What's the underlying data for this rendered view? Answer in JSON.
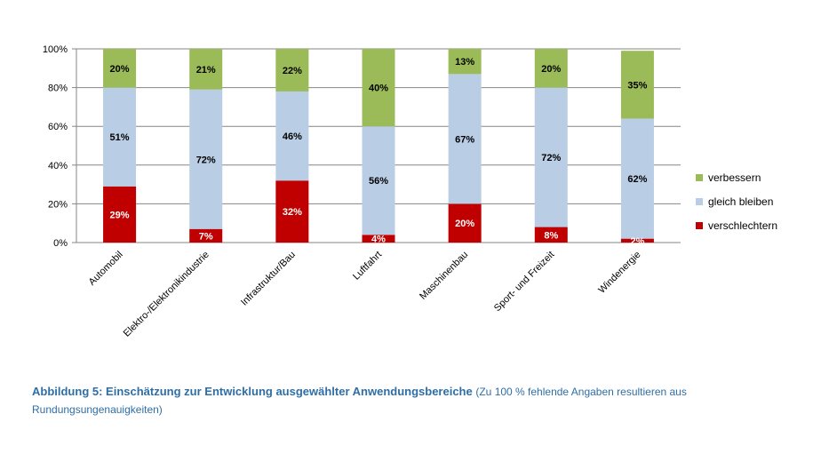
{
  "chart_data": {
    "type": "bar",
    "stacked": true,
    "categories": [
      "Automobil",
      "Elektro-/Elektronikindustrie",
      "Infrastruktur/Bau",
      "Luftfahrt",
      "Maschinenbau",
      "Sport- und Freizeit",
      "Windenergie"
    ],
    "series": [
      {
        "name": "verschlechtern",
        "color": "#c00000",
        "label_color": "#ffffff",
        "values": [
          29,
          7,
          32,
          4,
          20,
          8,
          2
        ],
        "labels": [
          "29%",
          "7%",
          "32%",
          "4%",
          "20%",
          "8%",
          "2%"
        ]
      },
      {
        "name": "gleich bleiben",
        "color": "#b9cde5",
        "label_color": "#000000",
        "values": [
          51,
          72,
          46,
          56,
          67,
          72,
          62
        ],
        "labels": [
          "51%",
          "72%",
          "46%",
          "56%",
          "67%",
          "72%",
          "62%"
        ]
      },
      {
        "name": "verbessern",
        "color": "#9bbb59",
        "label_color": "#000000",
        "values": [
          20,
          21,
          22,
          40,
          13,
          20,
          35
        ],
        "labels": [
          "20%",
          "21%",
          "22%",
          "40%",
          "13%",
          "20%",
          "35%"
        ]
      }
    ],
    "ylim": [
      0,
      100
    ],
    "yticks": [
      0,
      20,
      40,
      60,
      80,
      100
    ],
    "ytick_labels": [
      "0%",
      "20%",
      "40%",
      "60%",
      "80%",
      "100%"
    ],
    "grid": true,
    "legend_position": "right",
    "legend_order": [
      "verbessern",
      "gleich bleiben",
      "verschlechtern"
    ]
  },
  "caption": {
    "title": "Abbildung 5: Einschätzung zur Entwicklung ausgewählter Anwendungsbereiche",
    "note": "(Zu 100 % fehlende Angaben resultieren aus Rundungsungenauigkeiten)"
  }
}
